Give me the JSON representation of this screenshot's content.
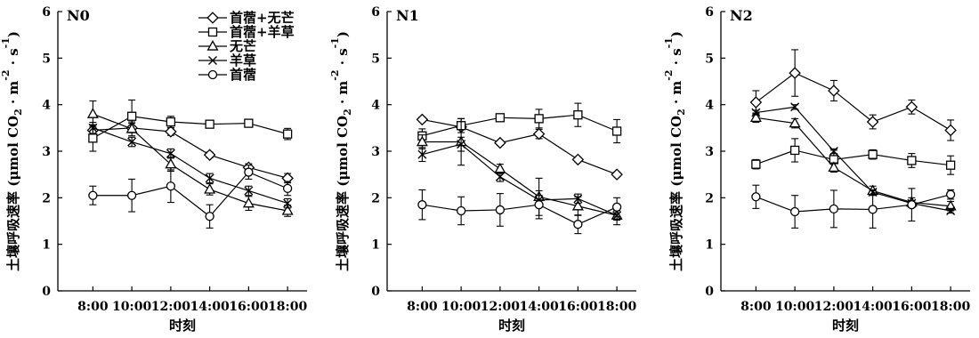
{
  "chart_data": [
    {
      "type": "line",
      "panel_label": "N0",
      "xlabel": "时刻",
      "ylabel": "土壤呼吸速率 (μmol CO2 · m-2 · s-1)",
      "categories": [
        "8:00",
        "10:00",
        "12:00",
        "14:00",
        "16:00",
        "18:00"
      ],
      "ylim": [
        0,
        6
      ],
      "yticks": [
        0,
        1,
        2,
        3,
        4,
        5,
        6
      ],
      "legend_position": "top-right",
      "grid": false,
      "series": [
        {
          "name": "首蓿+无芒",
          "marker": "diamond",
          "values": [
            3.45,
            3.5,
            3.42,
            2.92,
            2.65,
            2.42
          ],
          "errors": [
            0.12,
            0.1,
            0.08,
            0.06,
            0.08,
            0.1
          ]
        },
        {
          "name": "首蓿+羊草",
          "marker": "square",
          "values": [
            3.28,
            3.75,
            3.63,
            3.58,
            3.6,
            3.37
          ],
          "errors": [
            0.28,
            0.35,
            0.12,
            0.08,
            0.06,
            0.12
          ]
        },
        {
          "name": "无芒",
          "marker": "triangle",
          "values": [
            3.8,
            3.48,
            2.72,
            2.18,
            1.88,
            1.72
          ],
          "errors": [
            0.28,
            0.15,
            0.15,
            0.12,
            0.15,
            0.12
          ]
        },
        {
          "name": "羊草",
          "marker": "cross",
          "values": [
            3.5,
            3.2,
            2.95,
            2.42,
            2.15,
            1.88
          ],
          "errors": [
            0.12,
            0.1,
            0.1,
            0.1,
            0.1,
            0.1
          ]
        },
        {
          "name": "首蓿",
          "marker": "circle",
          "values": [
            2.05,
            2.05,
            2.25,
            1.6,
            2.55,
            2.2
          ],
          "errors": [
            0.2,
            0.35,
            0.35,
            0.25,
            0.15,
            0.15
          ]
        }
      ]
    },
    {
      "type": "line",
      "panel_label": "N1",
      "xlabel": "时刻",
      "ylabel": "土壤呼吸速率 (μmol CO2 · m-2 · s-1)",
      "categories": [
        "8:00",
        "10:00",
        "12:00",
        "14:00",
        "16:00",
        "18:00"
      ],
      "ylim": [
        0,
        6
      ],
      "yticks": [
        0,
        1,
        2,
        3,
        4,
        5,
        6
      ],
      "grid": false,
      "series": [
        {
          "name": "首蓿+无芒",
          "marker": "diamond",
          "values": [
            3.68,
            3.52,
            3.18,
            3.37,
            2.82,
            2.5
          ],
          "errors": [
            0.05,
            0.05,
            0.05,
            0.1,
            0.05,
            0.05
          ]
        },
        {
          "name": "首蓿+羊草",
          "marker": "square",
          "values": [
            3.33,
            3.55,
            3.72,
            3.7,
            3.78,
            3.43
          ],
          "errors": [
            0.15,
            0.15,
            0.05,
            0.2,
            0.25,
            0.25
          ]
        },
        {
          "name": "无芒",
          "marker": "triangle",
          "values": [
            3.2,
            3.2,
            2.62,
            2.02,
            1.82,
            1.62
          ],
          "errors": [
            0.15,
            0.5,
            0.1,
            0.4,
            0.2,
            0.2
          ]
        },
        {
          "name": "羊草",
          "marker": "cross",
          "values": [
            2.93,
            3.15,
            2.45,
            1.95,
            1.98,
            1.62
          ],
          "errors": [
            0.15,
            0.15,
            0.1,
            0.1,
            0.1,
            0.1
          ]
        },
        {
          "name": "首蓿",
          "marker": "circle",
          "values": [
            1.85,
            1.72,
            1.74,
            1.85,
            1.43,
            1.8
          ],
          "errors": [
            0.32,
            0.3,
            0.35,
            0.3,
            0.2,
            0.2
          ]
        }
      ]
    },
    {
      "type": "line",
      "panel_label": "N2",
      "xlabel": "时刻",
      "ylabel": "土壤呼吸速率 (μmol CO2 · m-2 · s-1)",
      "categories": [
        "8:00",
        "10:00",
        "12:00",
        "14:00",
        "16:00",
        "18:00"
      ],
      "ylim": [
        0,
        6
      ],
      "yticks": [
        0,
        1,
        2,
        3,
        4,
        5,
        6
      ],
      "grid": false,
      "series": [
        {
          "name": "首蓿+无芒",
          "marker": "diamond",
          "values": [
            4.05,
            4.68,
            4.3,
            3.63,
            3.95,
            3.45
          ],
          "errors": [
            0.25,
            0.5,
            0.22,
            0.15,
            0.15,
            0.22
          ]
        },
        {
          "name": "首蓿+羊草",
          "marker": "square",
          "values": [
            2.72,
            3.02,
            2.82,
            2.93,
            2.8,
            2.7
          ],
          "errors": [
            0.1,
            0.25,
            0.2,
            0.1,
            0.15,
            0.2
          ]
        },
        {
          "name": "无芒",
          "marker": "triangle",
          "values": [
            3.72,
            3.6,
            2.65,
            2.15,
            1.9,
            1.82
          ],
          "errors": [
            0.1,
            0.1,
            0.1,
            0.1,
            0.1,
            0.1
          ]
        },
        {
          "name": "羊草",
          "marker": "cross",
          "values": [
            3.83,
            3.95,
            3.0,
            2.12,
            1.88,
            1.72
          ],
          "errors": [
            0.05,
            0.05,
            0.05,
            0.05,
            0.05,
            0.05
          ]
        },
        {
          "name": "首蓿",
          "marker": "circle",
          "values": [
            2.02,
            1.7,
            1.76,
            1.75,
            1.85,
            2.07
          ],
          "errors": [
            0.25,
            0.35,
            0.4,
            0.4,
            0.35,
            0.1
          ]
        }
      ]
    }
  ]
}
